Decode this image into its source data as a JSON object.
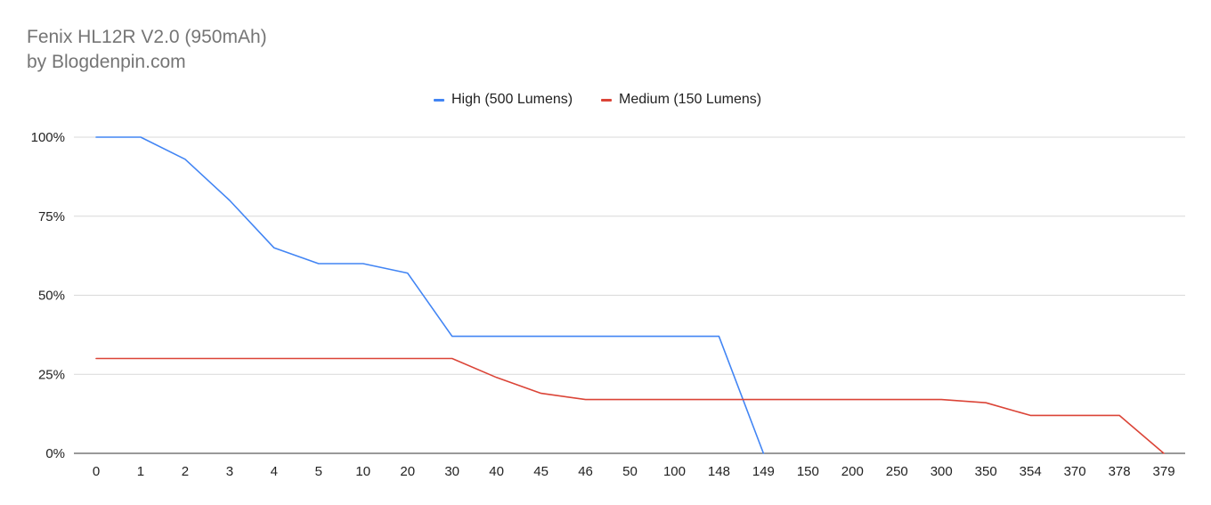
{
  "chart_data": {
    "type": "line",
    "title": "Fenix HL12R V2.0 (950mAh)",
    "subtitle": "by Blogdenpin.com",
    "xlabel": "",
    "ylabel": "",
    "categories": [
      "0",
      "1",
      "2",
      "3",
      "4",
      "5",
      "10",
      "20",
      "30",
      "40",
      "45",
      "46",
      "50",
      "100",
      "148",
      "149",
      "150",
      "200",
      "250",
      "300",
      "350",
      "354",
      "370",
      "378",
      "379"
    ],
    "ylim": [
      0,
      100
    ],
    "yticks": [
      "0%",
      "25%",
      "50%",
      "75%",
      "100%"
    ],
    "grid": true,
    "legend_position": "top",
    "series": [
      {
        "name": "High (500 Lumens)",
        "color": "#4285F4",
        "values": [
          100,
          100,
          93,
          80,
          65,
          60,
          60,
          57,
          37,
          37,
          37,
          37,
          37,
          37,
          37,
          0,
          null,
          null,
          null,
          null,
          null,
          null,
          null,
          null,
          null
        ]
      },
      {
        "name": "Medium (150 Lumens)",
        "color": "#DB4437",
        "values": [
          30,
          30,
          30,
          30,
          30,
          30,
          30,
          30,
          30,
          24,
          19,
          17,
          17,
          17,
          17,
          17,
          17,
          17,
          17,
          17,
          16,
          12,
          12,
          12,
          0
        ]
      }
    ]
  }
}
